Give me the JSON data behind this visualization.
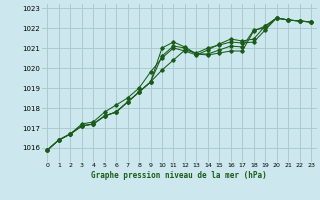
{
  "title": "Graphe pression niveau de la mer (hPa)",
  "bg_color": "#cce8ee",
  "grid_color": "#aacccc",
  "line_color": "#1a5c1a",
  "xlim": [
    -0.5,
    23.5
  ],
  "ylim": [
    1015.3,
    1023.2
  ],
  "yticks": [
    1016,
    1017,
    1018,
    1019,
    1020,
    1021,
    1022,
    1023
  ],
  "xticks": [
    0,
    1,
    2,
    3,
    4,
    5,
    6,
    7,
    8,
    9,
    10,
    11,
    12,
    13,
    14,
    15,
    16,
    17,
    18,
    19,
    20,
    21,
    22,
    23
  ],
  "series": [
    [
      1015.9,
      1016.4,
      1016.7,
      1017.1,
      1017.2,
      1017.6,
      1017.8,
      1018.3,
      1018.8,
      1019.3,
      1021.0,
      1021.3,
      1021.05,
      1020.7,
      1020.65,
      1020.75,
      1020.85,
      1020.85,
      1021.85,
      1022.1,
      1022.5,
      1022.4,
      1022.35,
      1022.3
    ],
    [
      1015.9,
      1016.4,
      1016.7,
      1017.1,
      1017.2,
      1017.6,
      1017.8,
      1018.3,
      1018.8,
      1019.3,
      1019.9,
      1020.4,
      1020.9,
      1020.75,
      1021.0,
      1021.15,
      1021.3,
      1021.25,
      1021.3,
      1021.9,
      1022.5,
      1022.4,
      1022.35,
      1022.3
    ],
    [
      1015.9,
      1016.4,
      1016.7,
      1017.1,
      1017.2,
      1017.6,
      1017.8,
      1018.3,
      1018.8,
      1019.3,
      1020.6,
      1021.1,
      1021.0,
      1020.7,
      1020.7,
      1020.9,
      1021.1,
      1021.05,
      1021.9,
      1022.0,
      1022.5,
      1022.4,
      1022.35,
      1022.3
    ],
    [
      1015.9,
      1016.4,
      1016.7,
      1017.2,
      1017.3,
      1017.8,
      1018.15,
      1018.5,
      1019.0,
      1019.8,
      1020.5,
      1021.0,
      1020.85,
      1020.65,
      1020.9,
      1021.2,
      1021.45,
      1021.35,
      1021.45,
      1022.1,
      1022.5,
      1022.4,
      1022.35,
      1022.3
    ]
  ]
}
